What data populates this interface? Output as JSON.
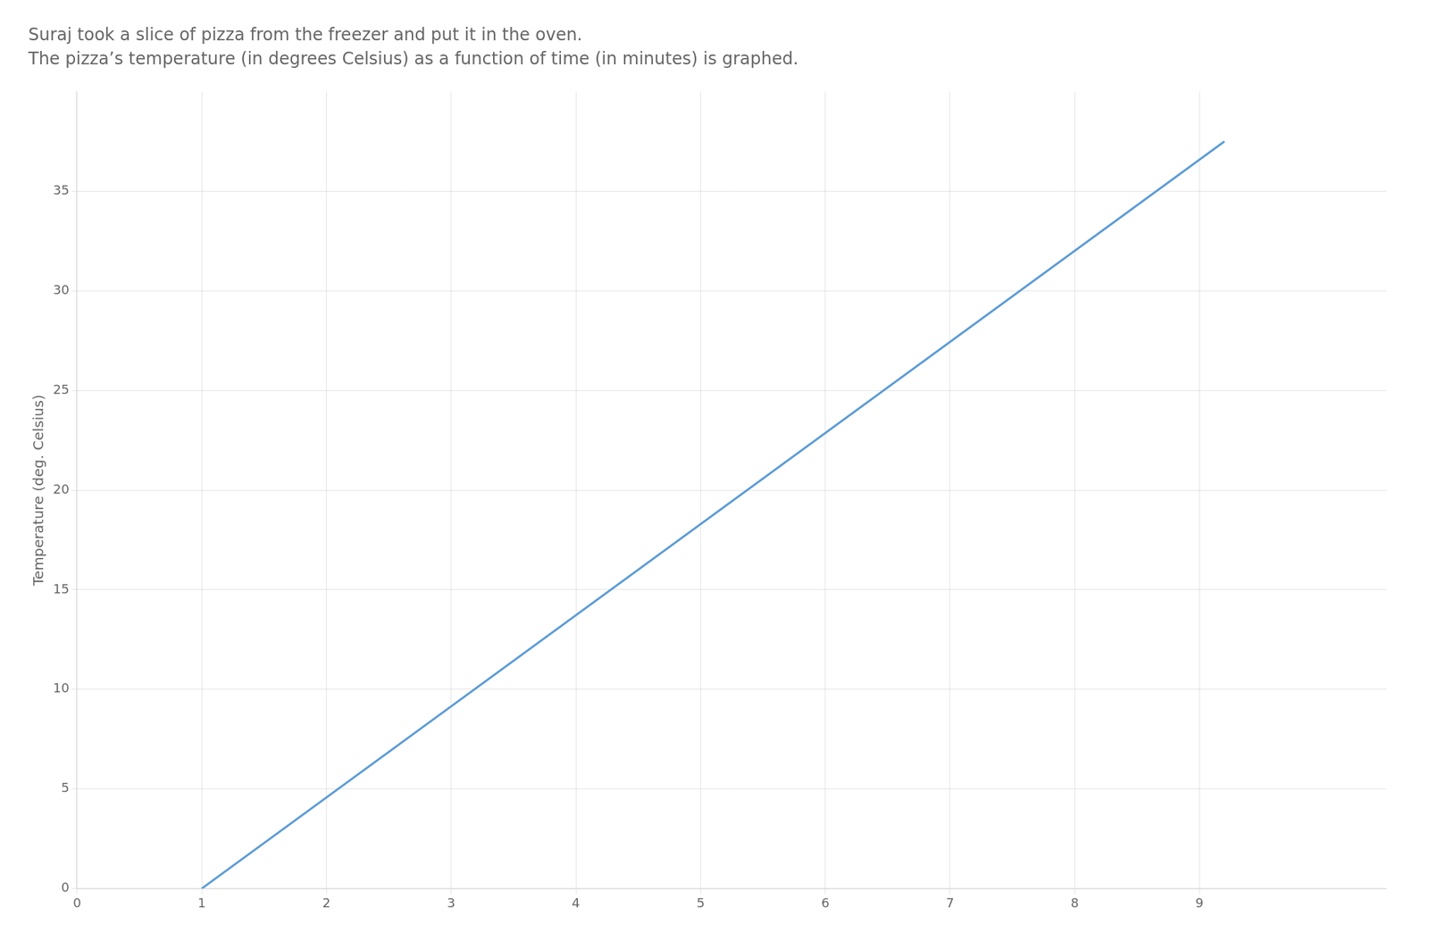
{
  "chart_data": {
    "type": "line",
    "title": "Suraj took a slice of pizza from the freezer and put it in the oven.",
    "subtitle": "The pizza’s temperature (in degrees Celsius) as a function of time (in minutes) is graphed.",
    "y_label": "Temperature (deg. Celsius)",
    "x": [
      1.0,
      9.2
    ],
    "values": [
      0.0,
      37.5
    ],
    "color": "#5b9bd5",
    "xlim": [
      0,
      10.5
    ],
    "ylim": [
      0,
      40
    ],
    "xticks": [
      0,
      1,
      2,
      3,
      4,
      5,
      6,
      7,
      8,
      9
    ],
    "yticks": [
      0,
      5,
      10,
      15,
      20,
      25,
      30,
      35
    ],
    "grid": true
  }
}
